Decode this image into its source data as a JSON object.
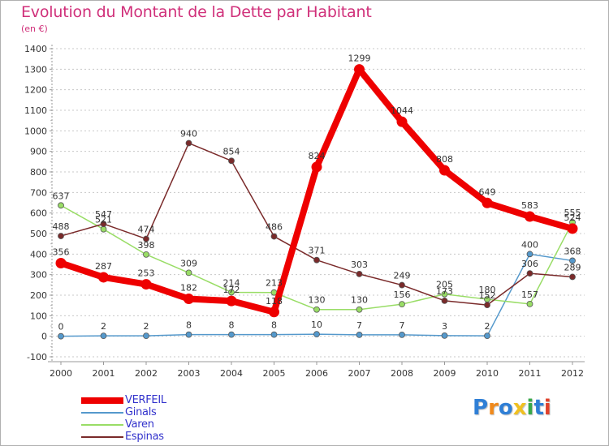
{
  "title": "Evolution du Montant de la Dette par Habitant",
  "subtitle": "(en €)",
  "logo": {
    "text": "Proxiti",
    "letters": [
      {
        "ch": "P",
        "color": "#2f7fd6"
      },
      {
        "ch": "r",
        "color": "#f08a1c"
      },
      {
        "ch": "o",
        "color": "#2f7fd6"
      },
      {
        "ch": "x",
        "color": "#f0c020"
      },
      {
        "ch": "i",
        "color": "#39a84a"
      },
      {
        "ch": "t",
        "color": "#2f7fd6"
      },
      {
        "ch": "i",
        "color": "#e0402a"
      }
    ]
  },
  "chart_data": {
    "type": "line",
    "title": "Evolution du Montant de la Dette par Habitant",
    "subtitle": "(en €)",
    "xlabel": "",
    "ylabel": "",
    "x": [
      "2000",
      "2001",
      "2002",
      "2003",
      "2004",
      "2005",
      "2006",
      "2007",
      "2008",
      "2009",
      "2010",
      "2011",
      "2012"
    ],
    "ylim": [
      -100,
      1400
    ],
    "yticks": [
      -100,
      0,
      100,
      200,
      300,
      400,
      500,
      600,
      700,
      800,
      900,
      1000,
      1100,
      1200,
      1300,
      1400
    ],
    "grid": "horizontal dashed",
    "legend_position": "bottom-left",
    "series": [
      {
        "name": "VERFEIL",
        "color": "#ee0000",
        "thick": true,
        "values": [
          356,
          287,
          253,
          182,
          172,
          118,
          824,
          1299,
          1044,
          808,
          649,
          583,
          524
        ],
        "labels": [
          "356",
          "287",
          "253",
          "182",
          "172",
          "118",
          "824",
          "1299",
          "1044",
          "808",
          "649",
          "583",
          "524"
        ]
      },
      {
        "name": "Ginals",
        "color": "#5599cc",
        "thick": false,
        "values": [
          0,
          2,
          2,
          8,
          8,
          8,
          10,
          7,
          7,
          3,
          2,
          400,
          368
        ],
        "labels": [
          "0",
          "2",
          "2",
          "8",
          "8",
          "8",
          "10",
          "7",
          "7",
          "3",
          "2",
          "400",
          "368"
        ]
      },
      {
        "name": "Varen",
        "color": "#99dd66",
        "thick": false,
        "values": [
          637,
          521,
          398,
          309,
          214,
          213,
          130,
          130,
          156,
          205,
          180,
          157,
          555
        ],
        "labels": [
          "637",
          "521",
          "398",
          "309",
          "214",
          "213",
          "130",
          "130",
          "156",
          "205",
          "180",
          "157",
          "555"
        ]
      },
      {
        "name": "Espinas",
        "color": "#7a2a2a",
        "thick": false,
        "values": [
          488,
          547,
          474,
          940,
          854,
          486,
          371,
          303,
          249,
          173,
          152,
          306,
          289
        ],
        "labels": [
          "488",
          "547",
          "474",
          "940",
          "854",
          "486",
          "371",
          "303",
          "249",
          "173",
          "152",
          "306",
          "289"
        ]
      }
    ]
  }
}
